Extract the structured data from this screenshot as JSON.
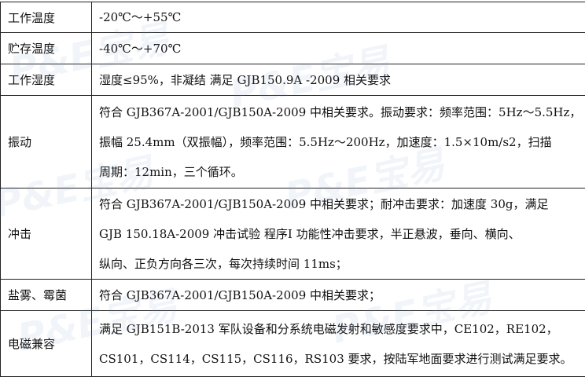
{
  "watermark": "P&E宝易",
  "rows": [
    {
      "label": "工作温度",
      "lines": [
        "-20℃～+55℃"
      ]
    },
    {
      "label": "贮存温度",
      "lines": [
        "-40℃～+70℃"
      ]
    },
    {
      "label": "工作湿度",
      "lines": [
        "湿度≤95%，非凝结 满足 GJB150.9A -2009 相关要求"
      ]
    },
    {
      "label": "振动",
      "lines": [
        "符合 GJB367A-2001/GJB150A-2009 中相关要求。振动要求：频率范围：5Hz～5.5Hz，",
        "振幅 25.4mm（双振幅），频率范围：5.5Hz～200Hz，加速度：1.5×10m/s2，扫描",
        "周期：12min，三个循环。"
      ]
    },
    {
      "label": "冲击",
      "lines": [
        "符合 GJB367A-2001/GJB150A-2009 中相关要求；耐冲击要求：加速度 30g，满足",
        "GJB 150.18A-2009 冲击试验 程序Ⅰ 功能性冲击要求，半正悬波，垂向、横向、",
        "纵向、正负方向各三次，每次持续时间 11ms；"
      ]
    },
    {
      "label": "盐雾、霉菌",
      "lines": [
        "符合 GJB367A-2001/GJB150A-2009 中相关要求；"
      ]
    },
    {
      "label": "电磁兼容",
      "lines": [
        "满足 GJB151B-2013 军队设备和分系统电磁发射和敏感度要求中，CE102，RE102，",
        "CS101，CS114，CS115，CS116，RS103 要求，按陆军地面要求进行测试满足要求。"
      ]
    }
  ]
}
